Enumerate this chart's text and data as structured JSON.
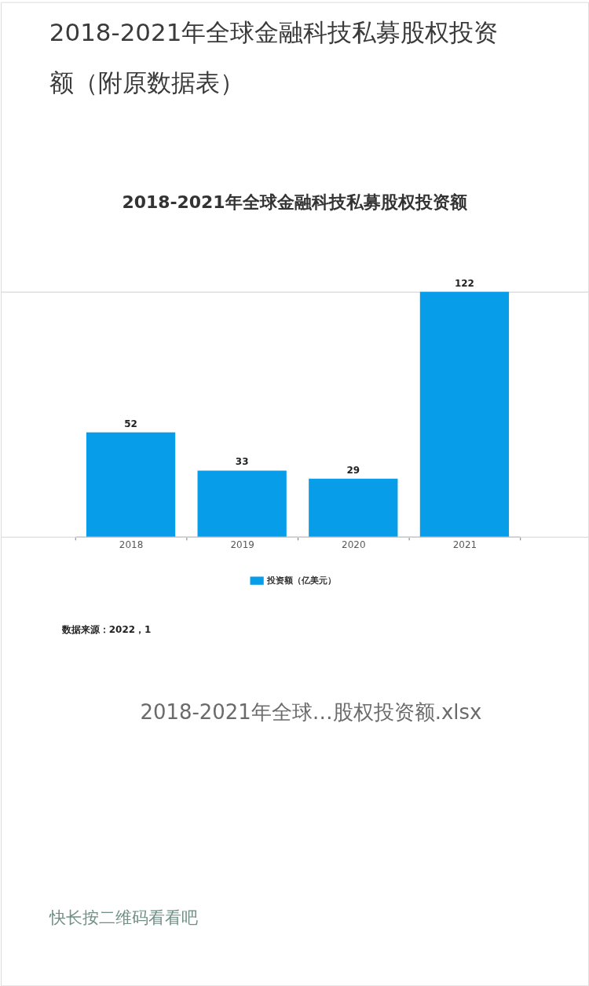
{
  "chart_data": {
    "type": "bar",
    "title": "2018-2021年全球金融科技私募股权投资额（附原数据表）",
    "subtitle": "2018-2021年全球金融科技私募股权投资额",
    "categories": [
      "2018",
      "2019",
      "2020",
      "2021"
    ],
    "series": [
      {
        "name": "投资额（亿美元）",
        "color": "#079de8",
        "values": [
          52,
          33,
          29,
          122
        ]
      }
    ],
    "data_labels": true,
    "legend": "bottom",
    "tick_labels": "x",
    "annotations": [
      "数据来源：2022，1",
      "2018-2021年全球…股权投资额.xlsx",
      "快长按二维码看看吧"
    ]
  }
}
